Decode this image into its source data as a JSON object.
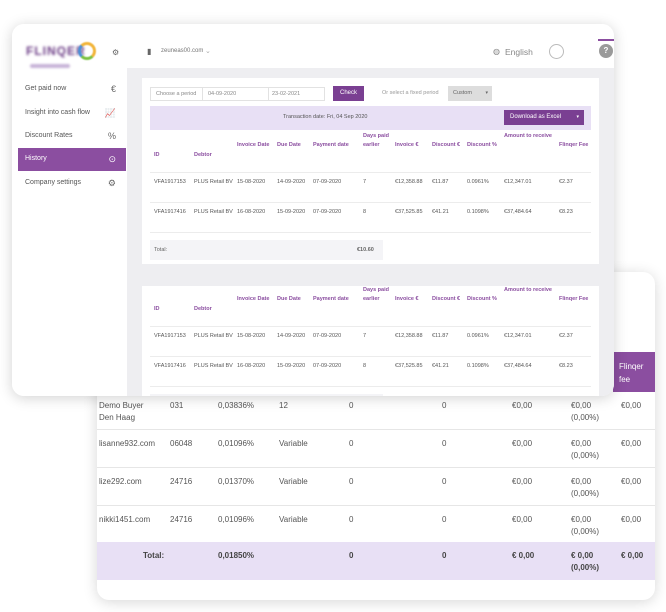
{
  "sidebar": {
    "items": [
      {
        "label": "Get paid now",
        "icon": "euro-icon",
        "glyph": "€"
      },
      {
        "label": "Insight into cash flow",
        "icon": "chart-icon",
        "glyph": "📈"
      },
      {
        "label": "Discount Rates",
        "icon": "percent-icon",
        "glyph": "%"
      },
      {
        "label": "History",
        "icon": "history-icon",
        "glyph": "⊙"
      },
      {
        "label": "Company settings",
        "icon": "settings-icon",
        "glyph": "⚙"
      }
    ],
    "active": "History"
  },
  "header": {
    "company": "zeuneas00.com",
    "language": "English",
    "help": "?"
  },
  "filters": {
    "period_label": "Choose a period",
    "date_from": "04-09-2020",
    "date_to": "23-02-2021",
    "check_button": "Check",
    "fixed_label": "Or select a fixed period",
    "fixed_value": "Custom"
  },
  "transaction": {
    "date_text": "Transaction date: Fri, 04 Sep 2020",
    "download_label": "Download as Excel"
  },
  "table": {
    "headers": [
      "ID",
      "Debtor",
      "Invoice Date",
      "Due Date",
      "Payment date",
      "Days paid earlier",
      "Invoice €",
      "Discount €",
      "Discount %",
      "Amount to receive",
      "Flinqer Fee"
    ],
    "rows": [
      [
        "VFA1917153",
        "PLUS Retail BV",
        "15-08-2020",
        "14-09-2020",
        "07-09-2020",
        "7",
        "€12,358.88",
        "€11.87",
        "0.0961%",
        "€12,347.01",
        "€2.37"
      ],
      [
        "VFA1917416",
        "PLUS Retail BV",
        "16-08-2020",
        "15-09-2020",
        "07-09-2020",
        "8",
        "€37,525.85",
        "€41.21",
        "0.1098%",
        "€37,484.64",
        "€8.23"
      ]
    ],
    "total_label": "Total:",
    "total_value": "€10.60"
  },
  "back_table": {
    "header_last": "Flinqer fee",
    "rows": [
      {
        "name": "Demo Buyer Den Haag",
        "code": "031",
        "rate": "0,03836%",
        "term": "12",
        "c1": "0",
        "c2": "0",
        "amt": "€0,00",
        "fee": "€0,00",
        "fee_pct": "(0,00%)",
        "last": "€0,00"
      },
      {
        "name": "lisanne932.com",
        "code": "06048",
        "rate": "0,01096%",
        "term": "Variable",
        "c1": "0",
        "c2": "0",
        "amt": "€0,00",
        "fee": "€0,00",
        "fee_pct": "(0,00%)",
        "last": "€0,00"
      },
      {
        "name": "lize292.com",
        "code": "24716",
        "rate": "0,01370%",
        "term": "Variable",
        "c1": "0",
        "c2": "0",
        "amt": "€0,00",
        "fee": "€0,00",
        "fee_pct": "(0,00%)",
        "last": "€0,00"
      },
      {
        "name": "nikki1451.com",
        "code": "24716",
        "rate": "0,01096%",
        "term": "Variable",
        "c1": "0",
        "c2": "0",
        "amt": "€0,00",
        "fee": "€0,00",
        "fee_pct": "(0,00%)",
        "last": "€0,00"
      }
    ],
    "total": {
      "label": "Total:",
      "rate": "0,01850%",
      "c1": "0",
      "c2": "0",
      "amt": "€ 0,00",
      "fee": "€ 0,00",
      "fee_pct": "(0,00%)",
      "last": "€ 0,00"
    }
  },
  "colors": {
    "accent": "#8b4ea0",
    "button": "#7a3f92",
    "highlight": "#e8e0f5"
  }
}
